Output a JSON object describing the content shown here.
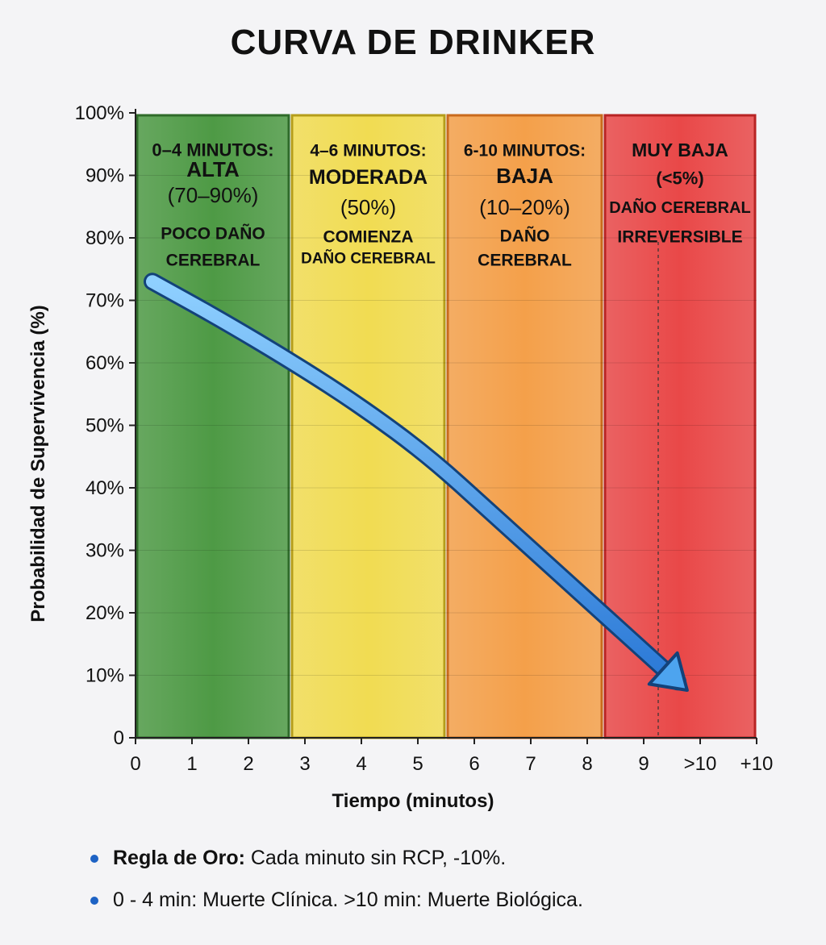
{
  "chart_data": {
    "type": "line",
    "title": "CURVA DE DRINKER",
    "xlabel": "Tiempo (minutos)",
    "ylabel": "Probabilidad de Supervivencia (%)",
    "ylim": [
      0,
      100
    ],
    "y_ticks": [
      "100%",
      "90%",
      "80%",
      "70%",
      "60%",
      "50%",
      "40%",
      "30%",
      "20%",
      "10%",
      "0"
    ],
    "x_ticks": [
      "0",
      "1",
      "2",
      "3",
      "4",
      "5",
      "6",
      "7",
      "8",
      "9",
      ">10",
      "+10"
    ],
    "zones": [
      {
        "lines": [
          "0–4 MINUTOS:",
          "ALTA",
          "(70–90%)",
          "POCO DAÑO",
          "CEREBRAL"
        ],
        "color": "#4e9a45"
      },
      {
        "lines": [
          "4–6 MINUTOS:",
          "MODERADA",
          "(50%)",
          "COMIENZA",
          "DAÑO CEREBRAL"
        ],
        "color": "#f1dc52"
      },
      {
        "lines": [
          "6-10 MINUTOS:",
          "BAJA",
          "(10–20%)",
          "DAÑO",
          "CEREBRAL"
        ],
        "color": "#f4a04a"
      },
      {
        "lines": [
          "MUY BAJA",
          "(<5%)",
          "DAÑO CEREBRAL",
          "IRREVERSIBLE"
        ],
        "color": "#e94848"
      }
    ],
    "series": [
      {
        "x": [
          0.3,
          1.5,
          2.8,
          4.0,
          5.2,
          6.3,
          7.4,
          8.5,
          9.6
        ],
        "y": [
          73,
          67,
          60,
          53,
          45,
          36,
          27,
          18,
          9
        ]
      }
    ]
  },
  "notes": [
    {
      "bold": "Regla de Oro:",
      "text": " Cada minuto sin RCP, -10%."
    },
    {
      "bold": "",
      "text": "0 - 4 min: Muerte Clínica. >10 min: Muerte Biológica."
    }
  ]
}
